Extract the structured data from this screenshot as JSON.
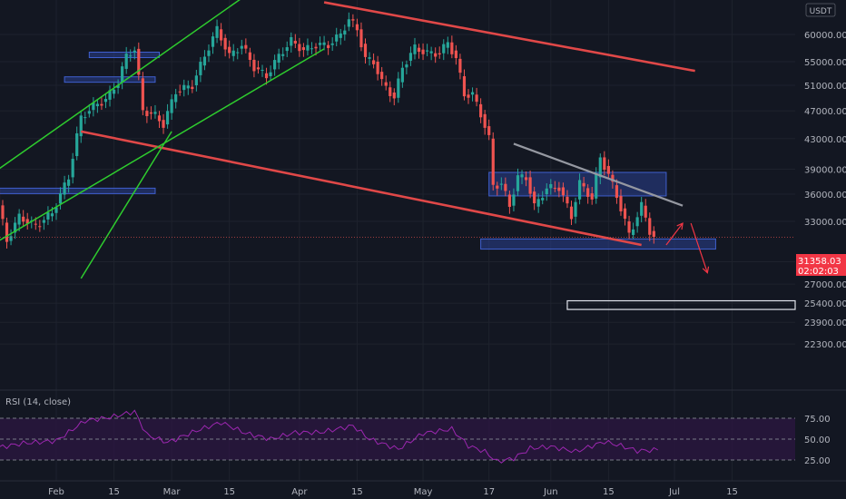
{
  "currency": "USDT",
  "price_badge": {
    "price": "31358.03",
    "countdown": "02:02:03",
    "value": 31358.03
  },
  "rsi": {
    "title": "RSI (14, close)",
    "levels": [
      75,
      50,
      25
    ],
    "level_labels": [
      "75.00",
      "50.00",
      "25.00"
    ]
  },
  "colors": {
    "bg": "#131722",
    "up": "#26a69a",
    "down": "#ef5350",
    "grid": "#1e222d",
    "red_channel": "#e04848",
    "green_channel": "#2ecc2e",
    "zone_fill": "#2a3f8f",
    "rsi_line": "#9c27b0",
    "rsi_fill": "#2a1740",
    "price_tag": "#f23645"
  },
  "chart_data": {
    "type": "candlestick",
    "symbol_currency": "USDT",
    "y_ticks": [
      60000,
      55000,
      51000,
      47000,
      43000,
      39000,
      36000,
      33000,
      29000,
      27000,
      25400,
      23900,
      22300
    ],
    "y_tick_labels": [
      "60000.00",
      "55000.00",
      "51000.00",
      "47000.00",
      "43000.00",
      "39000.00",
      "36000.00",
      "33000.00",
      "29000.00",
      "27000.00",
      "25400.00",
      "23900.00",
      "22300.00"
    ],
    "x_labels": [
      "Feb",
      "15",
      "Mar",
      "15",
      "Apr",
      "15",
      "May",
      "17",
      "Jun",
      "15",
      "Jul",
      "15"
    ],
    "x_label_dates": [
      "2021-02-01",
      "2021-02-15",
      "2021-03-01",
      "2021-03-15",
      "2021-04-01",
      "2021-04-15",
      "2021-05-01",
      "2021-05-17",
      "2021-06-01",
      "2021-06-15",
      "2021-07-01",
      "2021-07-15"
    ],
    "last_price": 31358.03,
    "price_series": [
      [
        "2021-01-18",
        36600
      ],
      [
        "2021-01-21",
        31000
      ],
      [
        "2021-01-24",
        33500
      ],
      [
        "2021-01-28",
        32500
      ],
      [
        "2021-02-01",
        33900
      ],
      [
        "2021-02-05",
        38000
      ],
      [
        "2021-02-08",
        46000
      ],
      [
        "2021-02-11",
        47700
      ],
      [
        "2021-02-14",
        48700
      ],
      [
        "2021-02-17",
        51500
      ],
      [
        "2021-02-19",
        56000
      ],
      [
        "2021-02-21",
        57300
      ],
      [
        "2021-02-23",
        47000
      ],
      [
        "2021-02-26",
        46300
      ],
      [
        "2021-02-28",
        45000
      ],
      [
        "2021-03-03",
        50000
      ],
      [
        "2021-03-07",
        51000
      ],
      [
        "2021-03-10",
        56000
      ],
      [
        "2021-03-13",
        61000
      ],
      [
        "2021-03-16",
        56000
      ],
      [
        "2021-03-19",
        58000
      ],
      [
        "2021-03-22",
        54000
      ],
      [
        "2021-03-25",
        52500
      ],
      [
        "2021-03-28",
        56000
      ],
      [
        "2021-03-31",
        58800
      ],
      [
        "2021-04-03",
        57000
      ],
      [
        "2021-04-06",
        58000
      ],
      [
        "2021-04-09",
        58000
      ],
      [
        "2021-04-12",
        60000
      ],
      [
        "2021-04-14",
        63000
      ],
      [
        "2021-04-16",
        61000
      ],
      [
        "2021-04-18",
        55500
      ],
      [
        "2021-04-20",
        55000
      ],
      [
        "2021-04-22",
        51500
      ],
      [
        "2021-04-25",
        49000
      ],
      [
        "2021-04-27",
        54000
      ],
      [
        "2021-04-30",
        57500
      ],
      [
        "2021-05-03",
        56500
      ],
      [
        "2021-05-06",
        56500
      ],
      [
        "2021-05-08",
        58500
      ],
      [
        "2021-05-10",
        55500
      ],
      [
        "2021-05-12",
        49500
      ],
      [
        "2021-05-14",
        49500
      ],
      [
        "2021-05-16",
        46500
      ],
      [
        "2021-05-18",
        43000
      ],
      [
        "2021-05-19",
        37000
      ],
      [
        "2021-05-21",
        37200
      ],
      [
        "2021-05-23",
        34700
      ],
      [
        "2021-05-25",
        38000
      ],
      [
        "2021-05-27",
        38000
      ],
      [
        "2021-05-29",
        34600
      ],
      [
        "2021-06-01",
        36700
      ],
      [
        "2021-06-04",
        36800
      ],
      [
        "2021-06-07",
        33500
      ],
      [
        "2021-06-09",
        37300
      ],
      [
        "2021-06-12",
        35500
      ],
      [
        "2021-06-14",
        40500
      ],
      [
        "2021-06-16",
        38300
      ],
      [
        "2021-06-18",
        35800
      ],
      [
        "2021-06-21",
        31600
      ],
      [
        "2021-06-22",
        32500
      ],
      [
        "2021-06-24",
        34700
      ],
      [
        "2021-06-26",
        32000
      ],
      [
        "2021-06-27",
        31358
      ]
    ],
    "rsi_series": [
      [
        "2021-01-18",
        40
      ],
      [
        "2021-01-24",
        45
      ],
      [
        "2021-02-01",
        48
      ],
      [
        "2021-02-08",
        72
      ],
      [
        "2021-02-14",
        76
      ],
      [
        "2021-02-20",
        83
      ],
      [
        "2021-02-23",
        55
      ],
      [
        "2021-02-28",
        46
      ],
      [
        "2021-03-07",
        60
      ],
      [
        "2021-03-13",
        70
      ],
      [
        "2021-03-19",
        57
      ],
      [
        "2021-03-25",
        50
      ],
      [
        "2021-03-31",
        58
      ],
      [
        "2021-04-06",
        58
      ],
      [
        "2021-04-14",
        66
      ],
      [
        "2021-04-18",
        50
      ],
      [
        "2021-04-25",
        38
      ],
      [
        "2021-05-01",
        57
      ],
      [
        "2021-05-08",
        62
      ],
      [
        "2021-05-12",
        42
      ],
      [
        "2021-05-16",
        35
      ],
      [
        "2021-05-19",
        23
      ],
      [
        "2021-05-23",
        27
      ],
      [
        "2021-05-27",
        39
      ],
      [
        "2021-06-01",
        41
      ],
      [
        "2021-06-07",
        35
      ],
      [
        "2021-06-14",
        47
      ],
      [
        "2021-06-18",
        42
      ],
      [
        "2021-06-22",
        36
      ],
      [
        "2021-06-27",
        37
      ]
    ],
    "overlays": {
      "red_lines": [
        [
          [
            "2021-04-07",
            66500
          ],
          [
            "2021-07-06",
            53400
          ]
        ],
        [
          [
            "2021-02-07",
            44000
          ],
          [
            "2021-06-23",
            30600
          ]
        ]
      ],
      "green_lines": [
        [
          [
            "2021-01-18",
            39000
          ],
          [
            "2021-03-19",
            68000
          ]
        ],
        [
          [
            "2021-01-18",
            31000
          ],
          [
            "2021-04-07",
            57300
          ]
        ],
        [
          [
            "2021-02-07",
            27500
          ],
          [
            "2021-03-01",
            44000
          ]
        ]
      ],
      "grey_lines": [
        [
          [
            "2021-05-23",
            42300
          ],
          [
            "2021-07-03",
            34700
          ]
        ]
      ],
      "zones": [
        {
          "from": "2021-05-17",
          "to": "2021-06-29",
          "low": 35800,
          "high": 38600,
          "fill": true
        },
        {
          "from": "2021-05-15",
          "to": "2021-07-11",
          "low": 30200,
          "high": 31200,
          "fill": true
        },
        {
          "from": "2021-06-05",
          "to": "2021-08-01",
          "low": 24900,
          "high": 25600,
          "fill": false
        },
        {
          "from": "2021-01-18",
          "to": "2021-02-25",
          "low": 36200,
          "high": 36700,
          "fill": true
        },
        {
          "from": "2021-02-09",
          "to": "2021-02-26",
          "low": 56000,
          "high": 56700,
          "fill": true
        },
        {
          "from": "2021-02-03",
          "to": "2021-02-25",
          "low": 51800,
          "high": 52400,
          "fill": true
        }
      ],
      "projection_arrows": [
        {
          "points": [
            [
              "2021-06-29",
              30600
            ],
            [
              "2021-07-03",
              32800
            ]
          ],
          "label": "up"
        },
        {
          "points": [
            [
              "2021-07-05",
              32800
            ],
            [
              "2021-07-09",
              28000
            ]
          ],
          "label": "down"
        }
      ]
    }
  }
}
